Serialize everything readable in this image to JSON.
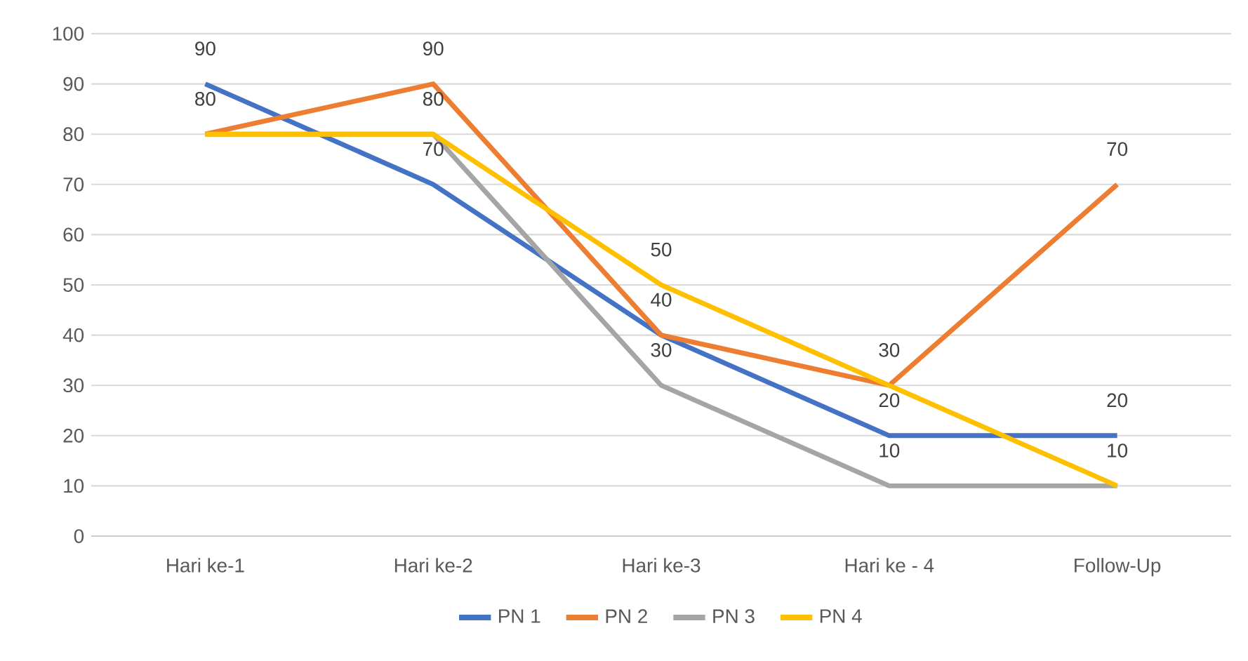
{
  "chart_data": {
    "type": "line",
    "categories": [
      "Hari ke-1",
      "Hari ke-2",
      "Hari ke-3",
      "Hari ke - 4",
      "Follow-Up"
    ],
    "series": [
      {
        "name": "PN 1",
        "color": "#4472c4",
        "values": [
          90,
          70,
          40,
          20,
          20
        ],
        "value_labels": [
          "90",
          "70",
          "40",
          "20",
          "20"
        ]
      },
      {
        "name": "PN 2",
        "color": "#ed7d31",
        "values": [
          80,
          90,
          40,
          30,
          70
        ],
        "value_labels": [
          "80",
          "90",
          null,
          "30",
          "70"
        ]
      },
      {
        "name": "PN 3",
        "color": "#a5a5a5",
        "values": [
          80,
          80,
          30,
          10,
          10
        ],
        "value_labels": [
          null,
          "80",
          "30",
          "10",
          "10"
        ]
      },
      {
        "name": "PN 4",
        "color": "#ffc000",
        "values": [
          80,
          80,
          50,
          30,
          10
        ],
        "value_labels": [
          null,
          null,
          "50",
          null,
          null
        ]
      }
    ],
    "ylim": [
      0,
      100
    ],
    "yticks": [
      0,
      10,
      20,
      30,
      40,
      50,
      60,
      70,
      80,
      90,
      100
    ],
    "grid": "y",
    "legend": "bottom",
    "marker": "none",
    "line_style": "solid"
  }
}
